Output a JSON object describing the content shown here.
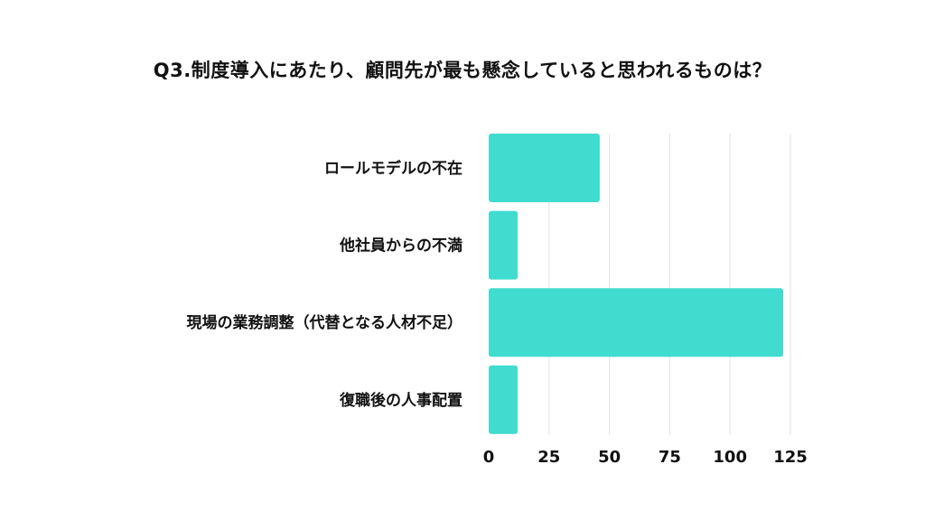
{
  "title": "Q3.制度導入にあたり、顧問先が最も懸念していると思われるものは？",
  "colors": {
    "bar": "#40DCCF",
    "grid": "#E3E3E3",
    "text": "#111111"
  },
  "chart_data": {
    "type": "bar",
    "orientation": "horizontal",
    "title": "Q3.制度導入にあたり、顧問先が最も懸念していると思われるものは？",
    "categories": [
      "ロールモデルの不在",
      "他社員からの不満",
      "現場の業務調整（代替となる人材不足）",
      "復職後の人事配置"
    ],
    "values": [
      46,
      12,
      122,
      12
    ],
    "xlim": [
      0,
      125
    ],
    "xticks": [
      "0",
      "25",
      "50",
      "75",
      "100",
      "125"
    ],
    "grid": true,
    "legend": false
  }
}
